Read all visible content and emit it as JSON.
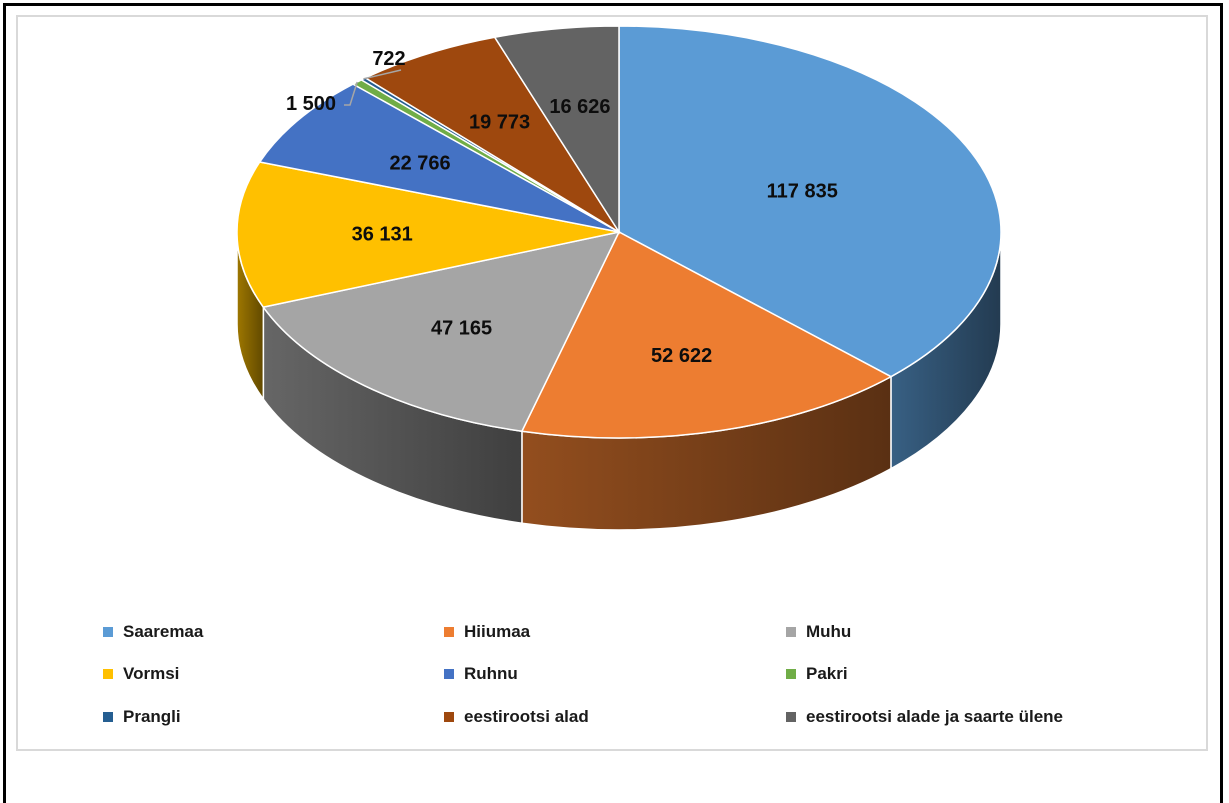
{
  "chart_data": {
    "type": "pie",
    "style": "3d",
    "title": "",
    "legend_position": "bottom",
    "slices": [
      {
        "name": "Saaremaa",
        "value": 117835,
        "label": "117 835",
        "color": "#5b9bd5"
      },
      {
        "name": "Hiiumaa",
        "value": 52622,
        "label": "52 622",
        "color": "#ed7d31"
      },
      {
        "name": "Muhu",
        "value": 47165,
        "label": "47 165",
        "color": "#a5a5a5"
      },
      {
        "name": "Vormsi",
        "value": 36131,
        "label": "36 131",
        "color": "#ffc000"
      },
      {
        "name": "Ruhnu",
        "value": 22766,
        "label": "22 766",
        "color": "#4472c4"
      },
      {
        "name": "Pakri",
        "value": 1500,
        "label": "1 500",
        "color": "#70ad47"
      },
      {
        "name": "Prangli",
        "value": 722,
        "label": "722",
        "color": "#255e91"
      },
      {
        "name": "eestirootsi alad",
        "value": 19773,
        "label": "19 773",
        "color": "#9e480e"
      },
      {
        "name": "eestirootsi alade ja saarte ülene",
        "value": 16626,
        "label": "16 626",
        "color": "#636363"
      }
    ]
  }
}
